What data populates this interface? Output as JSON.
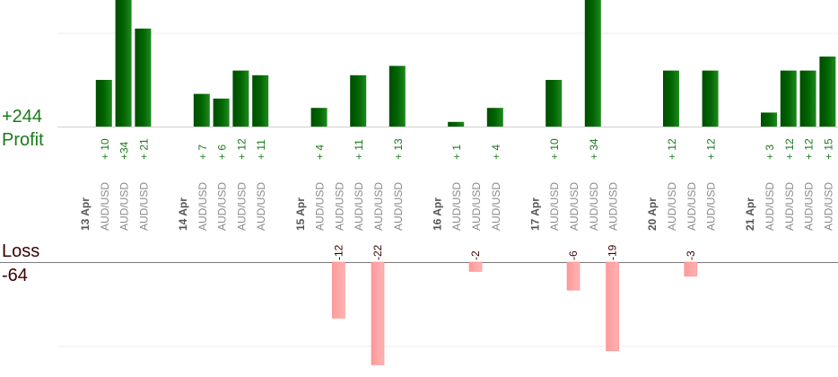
{
  "summary": {
    "profit_total": "+244",
    "profit_label": "Profit",
    "loss_label": "Loss",
    "loss_total": "-64"
  },
  "colors": {
    "profit_bar": "#006400",
    "profit_text": "#1a7a1a",
    "loss_bar": "#ffb3b3",
    "loss_text": "#3a0000",
    "date_text": "#555555",
    "symbol_text": "#8a8a8a"
  },
  "chart_data": {
    "type": "bar",
    "slots": [
      {
        "kind": "date",
        "label": "13 Apr"
      },
      {
        "kind": "trade",
        "symbol": "AUD/USD",
        "value": 10,
        "label": "+ 10"
      },
      {
        "kind": "trade",
        "symbol": "AUD/USD",
        "value": 34,
        "label": "+34"
      },
      {
        "kind": "trade",
        "symbol": "AUD/USD",
        "value": 21,
        "label": "+ 21"
      },
      {
        "kind": "gap"
      },
      {
        "kind": "date",
        "label": "14 Apr"
      },
      {
        "kind": "trade",
        "symbol": "AUD/USD",
        "value": 7,
        "label": "+ 7"
      },
      {
        "kind": "trade",
        "symbol": "AUD/USD",
        "value": 6,
        "label": "+ 6"
      },
      {
        "kind": "trade",
        "symbol": "AUD/USD",
        "value": 12,
        "label": "+ 12"
      },
      {
        "kind": "trade",
        "symbol": "AUD/USD",
        "value": 11,
        "label": "+ 11"
      },
      {
        "kind": "gap"
      },
      {
        "kind": "date",
        "label": "15 Apr"
      },
      {
        "kind": "trade",
        "symbol": "AUD/USD",
        "value": 4,
        "label": "+ 4"
      },
      {
        "kind": "trade",
        "symbol": "AUD/USD",
        "value": -12,
        "label": "-12"
      },
      {
        "kind": "trade",
        "symbol": "AUD/USD",
        "value": 11,
        "label": "+ 11"
      },
      {
        "kind": "trade",
        "symbol": "AUD/USD",
        "value": -22,
        "label": "-22"
      },
      {
        "kind": "trade",
        "symbol": "AUD/USD",
        "value": 13,
        "label": "+ 13"
      },
      {
        "kind": "gap"
      },
      {
        "kind": "date",
        "label": "16 Apr"
      },
      {
        "kind": "trade",
        "symbol": "AUD/USD",
        "value": 1,
        "label": "+ 1"
      },
      {
        "kind": "trade",
        "symbol": "AUD/USD",
        "value": -2,
        "label": "-2"
      },
      {
        "kind": "trade",
        "symbol": "AUD/USD",
        "value": 4,
        "label": "+ 4"
      },
      {
        "kind": "gap"
      },
      {
        "kind": "date",
        "label": "17 Apr"
      },
      {
        "kind": "trade",
        "symbol": "AUD/USD",
        "value": 10,
        "label": "+ 10"
      },
      {
        "kind": "trade",
        "symbol": "AUD/USD",
        "value": -6,
        "label": "-6"
      },
      {
        "kind": "trade",
        "symbol": "AUD/USD",
        "value": 34,
        "label": "+ 34"
      },
      {
        "kind": "trade",
        "symbol": "AUD/USD",
        "value": -19,
        "label": "-19"
      },
      {
        "kind": "gap"
      },
      {
        "kind": "date",
        "label": "20 Apr"
      },
      {
        "kind": "trade",
        "symbol": "AUD/USD",
        "value": 12,
        "label": "+ 12"
      },
      {
        "kind": "trade",
        "symbol": "AUD/USD",
        "value": -3,
        "label": "-3"
      },
      {
        "kind": "trade",
        "symbol": "AUD/USD",
        "value": 12,
        "label": "+ 12"
      },
      {
        "kind": "gap"
      },
      {
        "kind": "date",
        "label": "21 Apr"
      },
      {
        "kind": "trade",
        "symbol": "AUD/USD",
        "value": 3,
        "label": "+ 3"
      },
      {
        "kind": "trade",
        "symbol": "AUD/USD",
        "value": 12,
        "label": "+ 12"
      },
      {
        "kind": "trade",
        "symbol": "AUD/USD",
        "value": 12,
        "label": "+ 12"
      },
      {
        "kind": "trade",
        "symbol": "AUD/USD",
        "value": 15,
        "label": "+ 15"
      }
    ]
  }
}
